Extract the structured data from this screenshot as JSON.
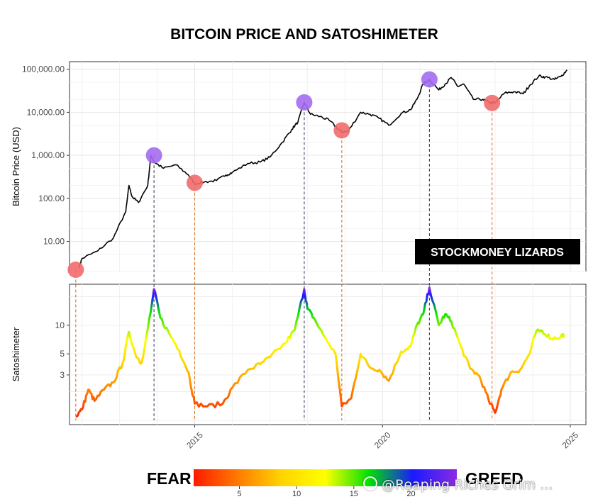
{
  "chart_data": {
    "type": "line",
    "title": "BITCOIN PRICE AND SATOSHIMETER",
    "badge": "STOCKMONEY LIZARDS",
    "x_range": [
      "2011-09",
      "2025-06"
    ],
    "x_ticks": [
      "2015",
      "2020",
      "2025"
    ],
    "x_scale": "linear date",
    "grid": true,
    "price_panel": {
      "ylabel": "Bitcoin Price (USD)",
      "scale": "log10",
      "ylim": [
        2,
        150000
      ],
      "y_ticks": [
        "10.00",
        "100.00",
        "1,000.00",
        "10,000.00",
        "100,000.00"
      ],
      "series": {
        "date": [
          "2011-12",
          "2012-01",
          "2012-06",
          "2012-11",
          "2013-03",
          "2013-04",
          "2013-05",
          "2013-07",
          "2013-10",
          "2013-11",
          "2013-12",
          "2014-03",
          "2014-07",
          "2014-11",
          "2015-01",
          "2015-04",
          "2015-08",
          "2015-11",
          "2016-01",
          "2016-06",
          "2016-10",
          "2017-01",
          "2017-05",
          "2017-08",
          "2017-10",
          "2017-12",
          "2018-02",
          "2018-05",
          "2018-08",
          "2018-11",
          "2018-12",
          "2019-02",
          "2019-06",
          "2019-09",
          "2019-12",
          "2020-03",
          "2020-07",
          "2020-10",
          "2020-12",
          "2021-02",
          "2021-04",
          "2021-07",
          "2021-09",
          "2021-11",
          "2022-01",
          "2022-03",
          "2022-06",
          "2022-09",
          "2022-11",
          "2023-01",
          "2023-04",
          "2023-07",
          "2023-10",
          "2023-12",
          "2024-03",
          "2024-05",
          "2024-08",
          "2024-10",
          "2024-12"
        ],
        "value": [
          2.5,
          4,
          6,
          12,
          50,
          200,
          110,
          80,
          200,
          1000,
          700,
          500,
          600,
          350,
          220,
          240,
          260,
          350,
          400,
          650,
          700,
          900,
          2000,
          4000,
          6000,
          17000,
          9000,
          8000,
          6500,
          4000,
          3500,
          3600,
          10000,
          9000,
          7200,
          5000,
          9500,
          11500,
          20000,
          45000,
          58000,
          33000,
          45000,
          64000,
          40000,
          45000,
          20000,
          20000,
          17000,
          16500,
          28000,
          30000,
          27000,
          42000,
          70000,
          66000,
          58000,
          68000,
          96000
        ]
      },
      "markers": [
        {
          "date": "2011-11",
          "value": 2.2,
          "kind": "fear"
        },
        {
          "date": "2013-12",
          "value": 1000,
          "kind": "greed"
        },
        {
          "date": "2015-01",
          "value": 230,
          "kind": "fear"
        },
        {
          "date": "2017-12",
          "value": 17000,
          "kind": "greed"
        },
        {
          "date": "2018-12",
          "value": 3800,
          "kind": "fear"
        },
        {
          "date": "2021-04",
          "value": 58000,
          "kind": "greed"
        },
        {
          "date": "2022-12",
          "value": 16500,
          "kind": "fear"
        }
      ]
    },
    "satoshimeter_panel": {
      "ylabel": "Satoshimeter",
      "scale": "log10",
      "ylim": [
        0.9,
        27
      ],
      "y_ticks": [
        "3",
        "5",
        "10"
      ],
      "series": {
        "date": [
          "2011-11",
          "2012-01",
          "2012-03",
          "2012-05",
          "2012-08",
          "2012-11",
          "2013-02",
          "2013-04",
          "2013-06",
          "2013-08",
          "2013-11",
          "2013-12",
          "2014-02",
          "2014-05",
          "2014-08",
          "2014-11",
          "2015-01",
          "2015-05",
          "2015-10",
          "2016-01",
          "2016-06",
          "2016-10",
          "2017-01",
          "2017-06",
          "2017-09",
          "2017-12",
          "2018-01",
          "2018-03",
          "2018-06",
          "2018-10",
          "2018-12",
          "2019-03",
          "2019-06",
          "2019-09",
          "2019-12",
          "2020-03",
          "2020-07",
          "2020-10",
          "2020-12",
          "2021-02",
          "2021-04",
          "2021-07",
          "2021-09",
          "2021-11",
          "2022-02",
          "2022-05",
          "2022-08",
          "2022-11",
          "2023-01",
          "2023-03",
          "2023-06",
          "2023-09",
          "2023-12",
          "2024-02",
          "2024-04",
          "2024-07",
          "2024-10",
          "2024-11"
        ],
        "value": [
          1.1,
          1.3,
          2.1,
          1.6,
          2.1,
          2.5,
          4,
          8.5,
          5,
          4,
          14,
          24,
          12,
          8,
          5.5,
          3.2,
          1.5,
          1.4,
          1.5,
          2.2,
          3.4,
          3.9,
          4.6,
          6.5,
          9,
          24,
          15,
          12,
          8,
          5,
          1.4,
          1.7,
          5,
          3.6,
          3.4,
          2.6,
          5.3,
          6,
          10,
          13,
          25,
          10,
          13,
          11,
          6,
          3.5,
          2.9,
          1.6,
          1.2,
          2.1,
          3.2,
          3.4,
          5,
          8.4,
          8.8,
          7.2,
          7.6,
          8
        ]
      },
      "gradient_stops": [
        "#ff1a00",
        "#ff7a00",
        "#ffd400",
        "#ffff00",
        "#00e000",
        "#1a1aff",
        "#8a2be2"
      ]
    },
    "legend": {
      "left_label": "FEAR",
      "right_label": "GREED",
      "ticks": [
        "5",
        "10",
        "15",
        "20"
      ],
      "range": [
        1,
        24
      ],
      "gradient_stops": [
        "#ff1a00",
        "#ff7a00",
        "#ffd400",
        "#ffff00",
        "#00e000",
        "#1a1aff",
        "#8a2be2"
      ]
    },
    "colors": {
      "price_line": "#000000",
      "fear_marker": "#f26c6c",
      "greed_marker": "#a56cf0",
      "fear_guide": "#e07020",
      "greed_guide": "#3a4660"
    }
  },
  "watermark": "@Reaping Riches Grim ..."
}
